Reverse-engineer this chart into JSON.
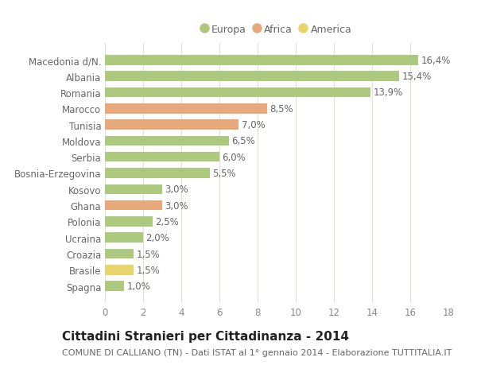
{
  "categories": [
    "Macedonia d/N.",
    "Albania",
    "Romania",
    "Marocco",
    "Tunisia",
    "Moldova",
    "Serbia",
    "Bosnia-Erzegovina",
    "Kosovo",
    "Ghana",
    "Polonia",
    "Ucraina",
    "Croazia",
    "Brasile",
    "Spagna"
  ],
  "values": [
    16.4,
    15.4,
    13.9,
    8.5,
    7.0,
    6.5,
    6.0,
    5.5,
    3.0,
    3.0,
    2.5,
    2.0,
    1.5,
    1.5,
    1.0
  ],
  "continents": [
    "Europa",
    "Europa",
    "Europa",
    "Africa",
    "Africa",
    "Europa",
    "Europa",
    "Europa",
    "Europa",
    "Africa",
    "Europa",
    "Europa",
    "Europa",
    "America",
    "Europa"
  ],
  "colors": {
    "Europa": "#adc97e",
    "Africa": "#e8a97a",
    "America": "#e8d46a"
  },
  "labels": [
    "16,4%",
    "15,4%",
    "13,9%",
    "8,5%",
    "7,0%",
    "6,5%",
    "6,0%",
    "5,5%",
    "3,0%",
    "3,0%",
    "2,5%",
    "2,0%",
    "1,5%",
    "1,5%",
    "1,0%"
  ],
  "legend_items": [
    "Europa",
    "Africa",
    "America"
  ],
  "title": "Cittadini Stranieri per Cittadinanza - 2014",
  "subtitle": "COMUNE DI CALLIANO (TN) - Dati ISTAT al 1° gennaio 2014 - Elaborazione TUTTITALIA.IT",
  "xlim": [
    0,
    18
  ],
  "xticks": [
    0,
    2,
    4,
    6,
    8,
    10,
    12,
    14,
    16,
    18
  ],
  "background_color": "#ffffff",
  "plot_bg_color": "#ffffff",
  "grid_color": "#e0e0d8",
  "bar_height": 0.62,
  "label_fontsize": 8.5,
  "tick_fontsize": 8.5,
  "title_fontsize": 11,
  "subtitle_fontsize": 8
}
